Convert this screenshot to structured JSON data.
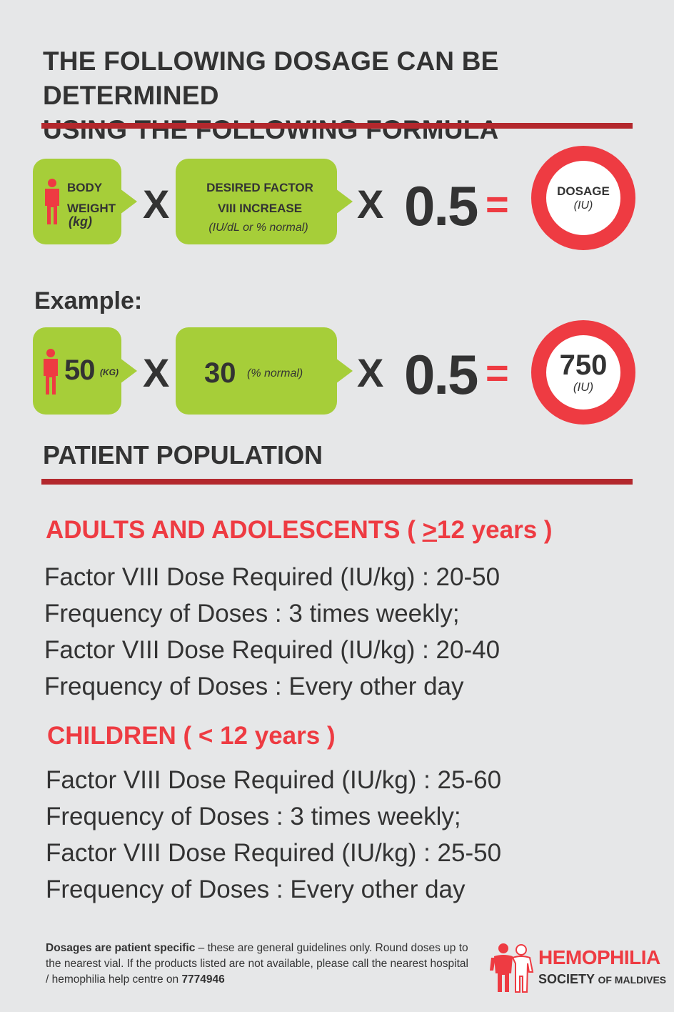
{
  "heading": {
    "line1": "THE FOLLOWING DOSAGE CAN BE DETERMINED",
    "line2": "USING THE FOLLOWING FORMULA"
  },
  "formula": {
    "weight_line1": "BODY",
    "weight_line2": "WEIGHT",
    "weight_unit": "(kg)",
    "factor_line1": "DESIRED FACTOR",
    "factor_line2": "VIII INCREASE",
    "factor_unit": "(IU/dL or % normal)",
    "times": "X",
    "constant": "0.5",
    "equals": "=",
    "result_label": "DOSAGE",
    "result_unit": "(IU)"
  },
  "example": {
    "label": "Example:",
    "weight_value": "50",
    "weight_unit": "(KG)",
    "factor_value": "30",
    "factor_unit": "(% normal)",
    "times": "X",
    "constant": "0.5",
    "equals": "=",
    "result_value": "750",
    "result_unit": "(IU)"
  },
  "population": {
    "title": "PATIENT POPULATION",
    "adults": {
      "title_prefix": "ADULTS AND ADOLESCENTS ( ",
      "title_symbol": ">",
      "title_suffix": "12 years )",
      "lines": [
        "Factor VIII Dose Required (IU/kg) : 20-50",
        "Frequency of Doses : 3 times weekly;",
        "Factor VIII Dose Required (IU/kg) : 20-40",
        "Frequency of Doses : Every other day"
      ]
    },
    "children": {
      "title": "CHILDREN ( < 12 years )",
      "lines": [
        "Factor VIII Dose Required (IU/kg) : 25-60",
        "Frequency of Doses : 3 times weekly;",
        "Factor VIII Dose Required (IU/kg) : 25-50",
        "Frequency of Doses : Every other day"
      ]
    }
  },
  "footer": {
    "bold_lead": "Dosages are patient specific",
    "text": " – these are general guidelines only. Round doses up to the nearest vial. If the products listed are not available, please call the nearest hospital / hemophilia help centre on ",
    "phone": "7774946"
  },
  "logo": {
    "line1": "HEMOPHILIA",
    "line2a": "SOCIETY",
    "line2b": "OF MALDIVES"
  },
  "colors": {
    "background": "#e6e7e8",
    "green": "#a6ce39",
    "red": "#ee3b42",
    "rule": "#b3282d",
    "text": "#333333"
  }
}
